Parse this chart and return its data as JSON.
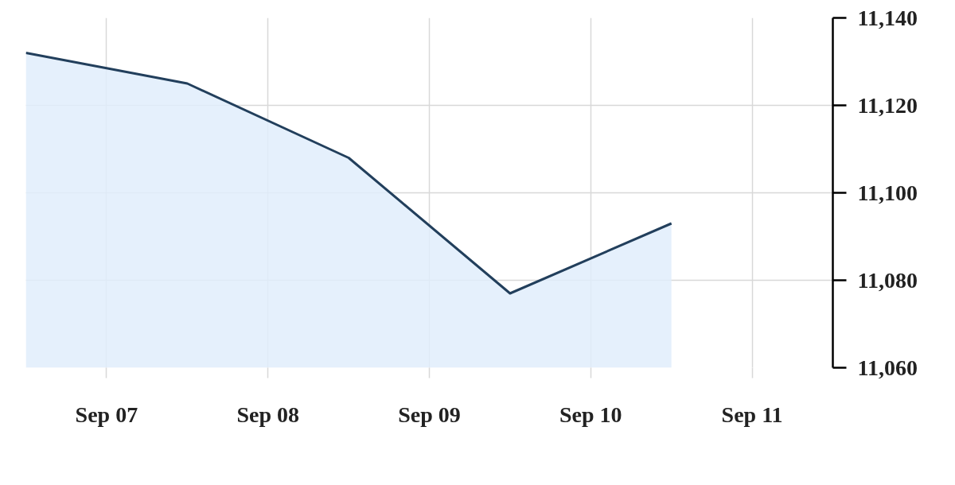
{
  "chart_data": {
    "type": "area",
    "x": [
      "--09-06T12:00",
      "--09-07T12:00",
      "--09-08T12:00",
      "--09-09T12:00",
      "--09-10T12:00"
    ],
    "series": [
      {
        "color": "#223f5c",
        "values": [
          11132,
          11125,
          11108,
          11077,
          11093
        ]
      }
    ],
    "xlim": [
      "--09-06T12:00",
      "--09-11T12:00"
    ],
    "xticks": [
      {
        "value": "--09-07",
        "label": "Sep 07"
      },
      {
        "value": "--09-08",
        "label": "Sep 08"
      },
      {
        "value": "--09-09",
        "label": "Sep 09"
      },
      {
        "value": "--09-10",
        "label": "Sep 10"
      },
      {
        "value": "--09-11",
        "label": "Sep 11"
      }
    ],
    "ylim": [
      11060,
      11140
    ],
    "yticks": [
      {
        "value": 11060,
        "label": "11,060"
      },
      {
        "value": 11080,
        "label": "11,080"
      },
      {
        "value": 11100,
        "label": "11,100"
      },
      {
        "value": 11120,
        "label": "11,120"
      },
      {
        "value": 11140,
        "label": "11,140"
      }
    ],
    "grid": true
  }
}
